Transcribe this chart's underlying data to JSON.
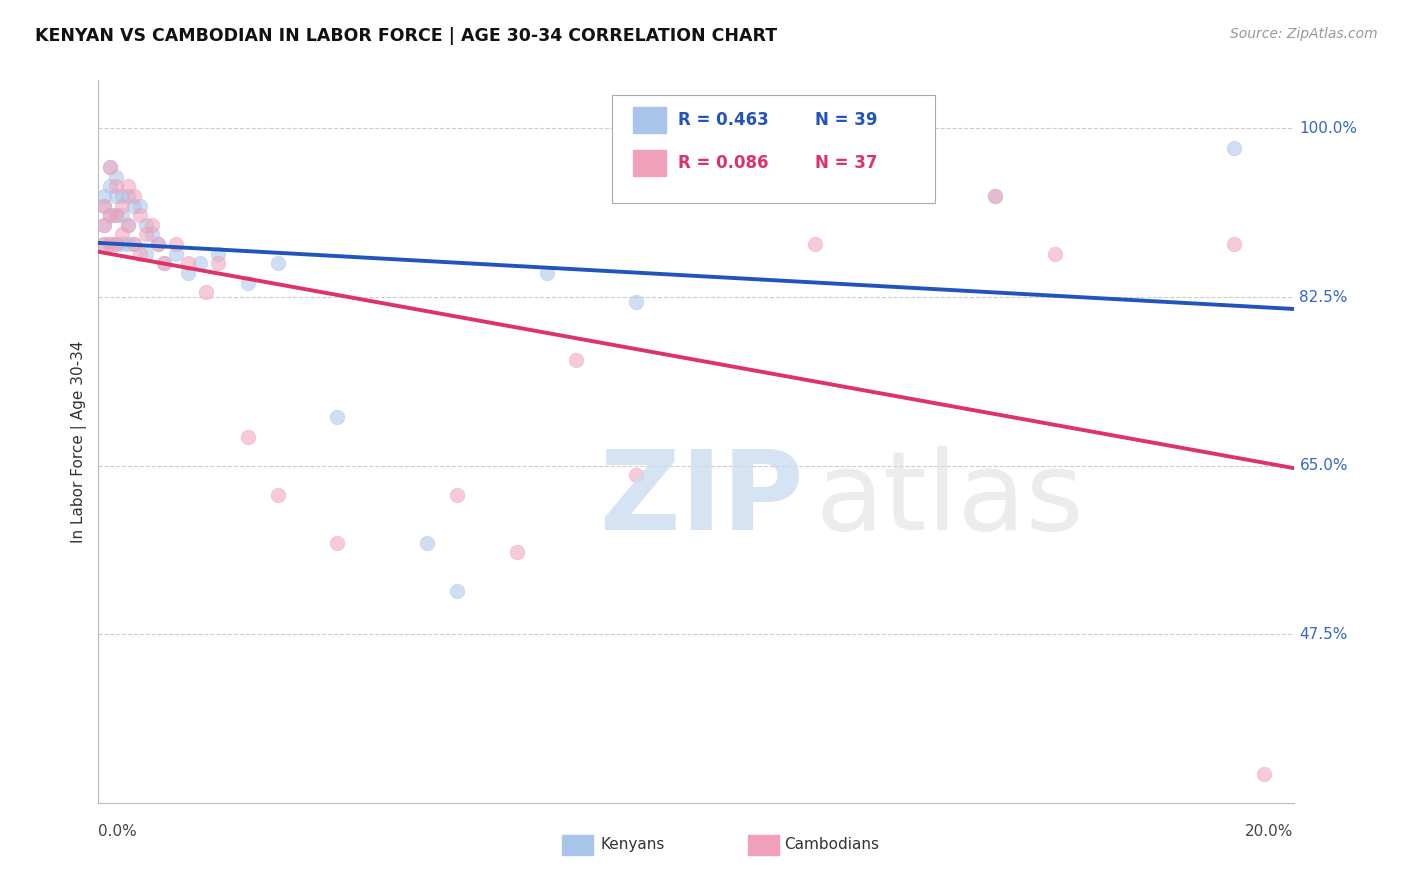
{
  "title": "KENYAN VS CAMBODIAN IN LABOR FORCE | AGE 30-34 CORRELATION CHART",
  "source": "Source: ZipAtlas.com",
  "ylabel": "In Labor Force | Age 30-34",
  "yticks": [
    "100.0%",
    "82.5%",
    "65.0%",
    "47.5%"
  ],
  "ytick_values": [
    1.0,
    0.825,
    0.65,
    0.475
  ],
  "xlim": [
    0.0,
    0.2
  ],
  "ylim": [
    0.3,
    1.05
  ],
  "kenyan_x": [
    0.001,
    0.001,
    0.001,
    0.001,
    0.002,
    0.002,
    0.002,
    0.002,
    0.003,
    0.003,
    0.003,
    0.003,
    0.004,
    0.004,
    0.004,
    0.005,
    0.005,
    0.005,
    0.006,
    0.006,
    0.007,
    0.008,
    0.008,
    0.009,
    0.01,
    0.011,
    0.013,
    0.015,
    0.017,
    0.02,
    0.025,
    0.03,
    0.04,
    0.055,
    0.06,
    0.075,
    0.09,
    0.15,
    0.19
  ],
  "kenyan_y": [
    0.93,
    0.92,
    0.9,
    0.88,
    0.96,
    0.94,
    0.91,
    0.88,
    0.95,
    0.93,
    0.91,
    0.88,
    0.93,
    0.91,
    0.88,
    0.93,
    0.9,
    0.88,
    0.92,
    0.88,
    0.92,
    0.9,
    0.87,
    0.89,
    0.88,
    0.86,
    0.87,
    0.85,
    0.86,
    0.87,
    0.84,
    0.86,
    0.7,
    0.57,
    0.52,
    0.85,
    0.82,
    0.93,
    0.98
  ],
  "cambodian_x": [
    0.001,
    0.001,
    0.001,
    0.002,
    0.002,
    0.002,
    0.003,
    0.003,
    0.003,
    0.004,
    0.004,
    0.005,
    0.005,
    0.006,
    0.006,
    0.007,
    0.007,
    0.008,
    0.009,
    0.01,
    0.011,
    0.013,
    0.015,
    0.018,
    0.02,
    0.025,
    0.03,
    0.04,
    0.06,
    0.07,
    0.08,
    0.09,
    0.12,
    0.15,
    0.16,
    0.19,
    0.195
  ],
  "cambodian_y": [
    0.92,
    0.9,
    0.88,
    0.96,
    0.91,
    0.88,
    0.94,
    0.91,
    0.88,
    0.92,
    0.89,
    0.94,
    0.9,
    0.93,
    0.88,
    0.91,
    0.87,
    0.89,
    0.9,
    0.88,
    0.86,
    0.88,
    0.86,
    0.83,
    0.86,
    0.68,
    0.62,
    0.57,
    0.62,
    0.56,
    0.76,
    0.64,
    0.88,
    0.93,
    0.87,
    0.88,
    0.33
  ],
  "kenyan_color": "#a8c4e8",
  "cambodian_color": "#f0a0b8",
  "kenyan_line_color": "#2255bb",
  "cambodian_line_color": "#dd3366",
  "axis_label_color": "#3366cc",
  "R_kenyan": 0.463,
  "N_kenyan": 39,
  "R_cambodian": 0.086,
  "N_cambodian": 37,
  "grid_color": "#cccccc",
  "marker_size": 110,
  "marker_alpha": 0.55,
  "line_width": 2.8
}
